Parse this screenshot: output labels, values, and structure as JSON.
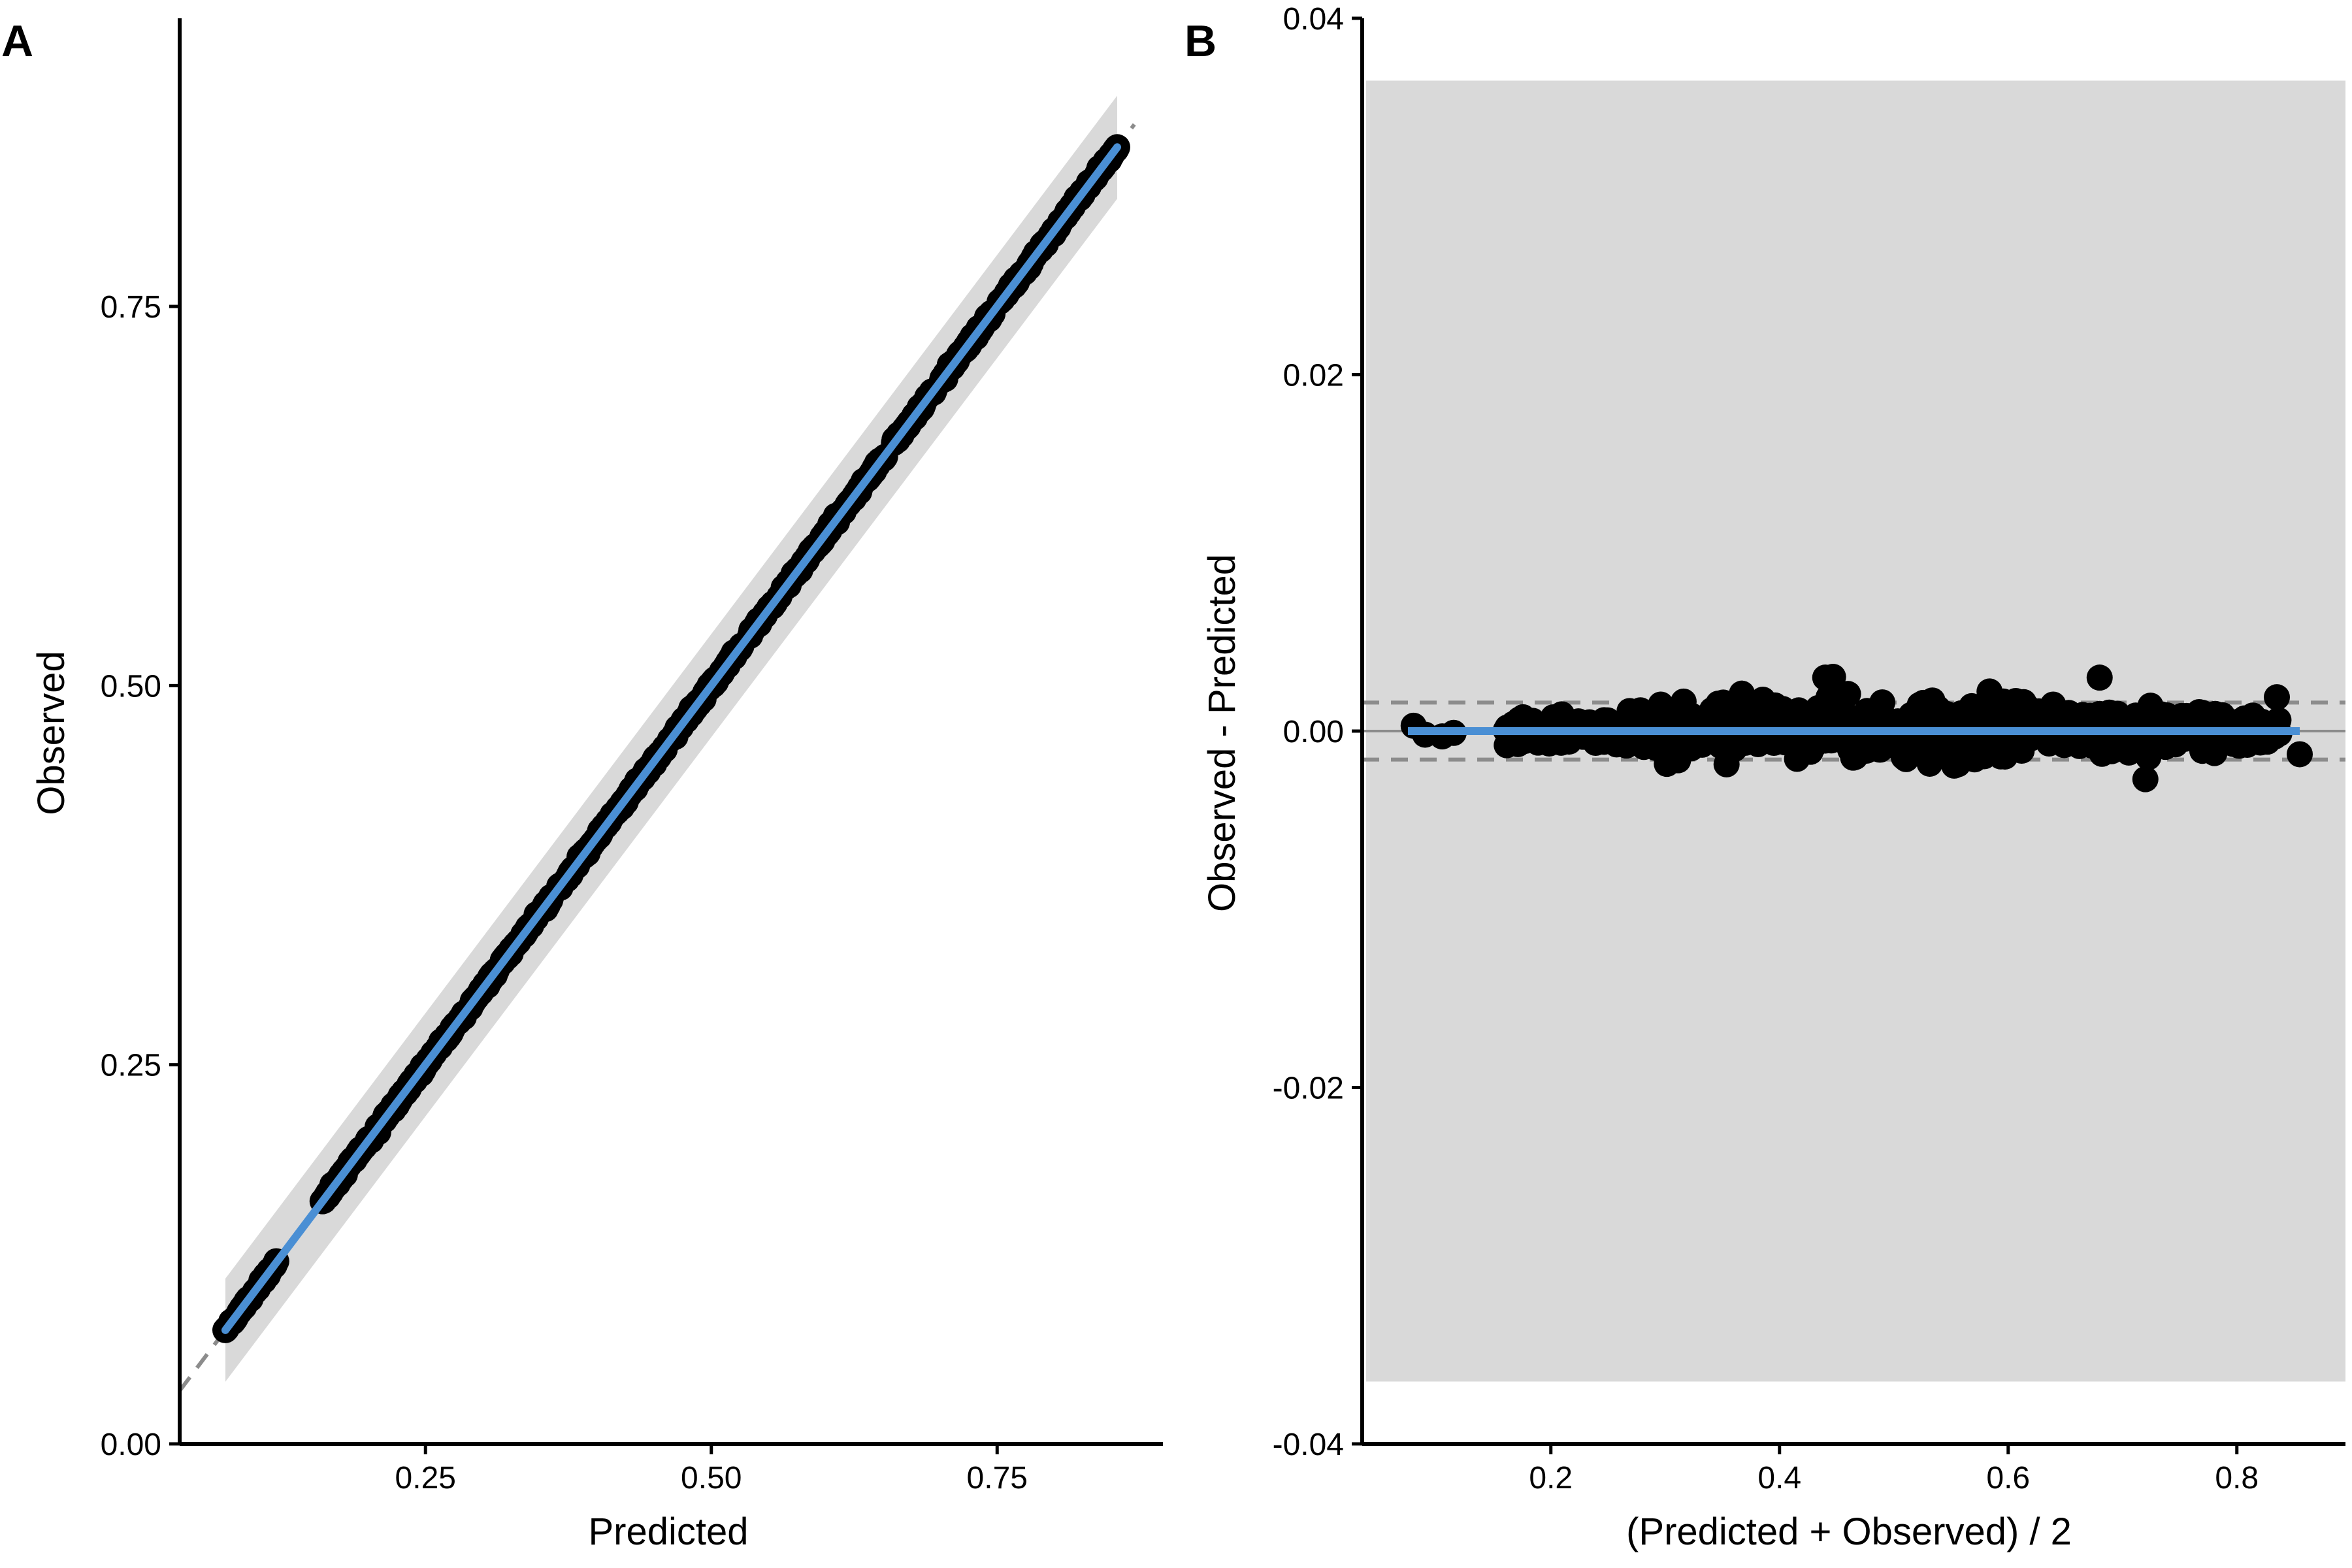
{
  "chart_data": [
    {
      "type": "scatter",
      "panel": "A",
      "title": "",
      "xlabel": "Predicted",
      "ylabel": "Observed",
      "xlim": [
        0.035,
        0.895
      ],
      "ylim": [
        0.0,
        0.94
      ],
      "xticks": [
        0.25,
        0.5,
        0.75
      ],
      "yticks": [
        0.0,
        0.25,
        0.5,
        0.75
      ],
      "xtick_labels": [
        "0.25",
        "0.50",
        "0.75"
      ],
      "ytick_labels": [
        "0.00",
        "0.25",
        "0.50",
        "0.75"
      ],
      "grid": false,
      "points": {
        "n": 700,
        "x_range": [
          0.075,
          0.855
        ],
        "description_of_pattern": "points lie on identity line",
        "gap": [
          0.12,
          0.16
        ]
      },
      "reference_line": {
        "style": "dashed",
        "slope": 1,
        "intercept": 0,
        "color": "#8c8c8c"
      },
      "fit_line": {
        "x": [
          0.075,
          0.855
        ],
        "y": [
          0.075,
          0.855
        ],
        "color": "#4a8fd4"
      },
      "band": {
        "x": [
          0.075,
          0.855
        ],
        "half_width": 0.034,
        "color": "#d9d9d9"
      },
      "colors": {
        "points": "#000000",
        "fit": "#4a8fd4",
        "band": "#d9d9d9",
        "reference": "#8c8c8c"
      }
    },
    {
      "type": "scatter",
      "panel": "B",
      "title": "",
      "xlabel": "(Predicted + Observed) / 2",
      "ylabel": "Observed - Predicted",
      "xlim": [
        0.035,
        0.895
      ],
      "ylim": [
        -0.04,
        0.04
      ],
      "xticks": [
        0.2,
        0.4,
        0.6,
        0.8
      ],
      "yticks": [
        -0.04,
        -0.02,
        0.0,
        0.02,
        0.04
      ],
      "xtick_labels": [
        "0.2",
        "0.4",
        "0.6",
        "0.8"
      ],
      "ytick_labels": [
        "-0.04",
        "-0.02",
        "0.00",
        "0.02",
        "0.04"
      ],
      "grid": false,
      "points": {
        "n": 700,
        "x_range": [
          0.075,
          0.855
        ],
        "y_spread": 0.0025
      },
      "mean_line": {
        "y": 0.0,
        "color": "#8c8c8c"
      },
      "limits_of_agreement": {
        "upper": 0.0016,
        "lower": -0.0016,
        "style": "dashed",
        "color": "#8c8c8c"
      },
      "fit_line": {
        "x": [
          0.075,
          0.855
        ],
        "y": [
          0.0,
          0.0
        ],
        "color": "#4a8fd4"
      },
      "band": {
        "x": [
          0.035,
          0.895
        ],
        "y": [
          -0.0365,
          0.0365
        ],
        "color": "#d9d9d9"
      },
      "colors": {
        "points": "#000000",
        "fit": "#4a8fd4",
        "band": "#d9d9d9",
        "reference": "#8c8c8c"
      }
    }
  ],
  "panels": [
    {
      "label": "A"
    },
    {
      "label": "B"
    }
  ]
}
